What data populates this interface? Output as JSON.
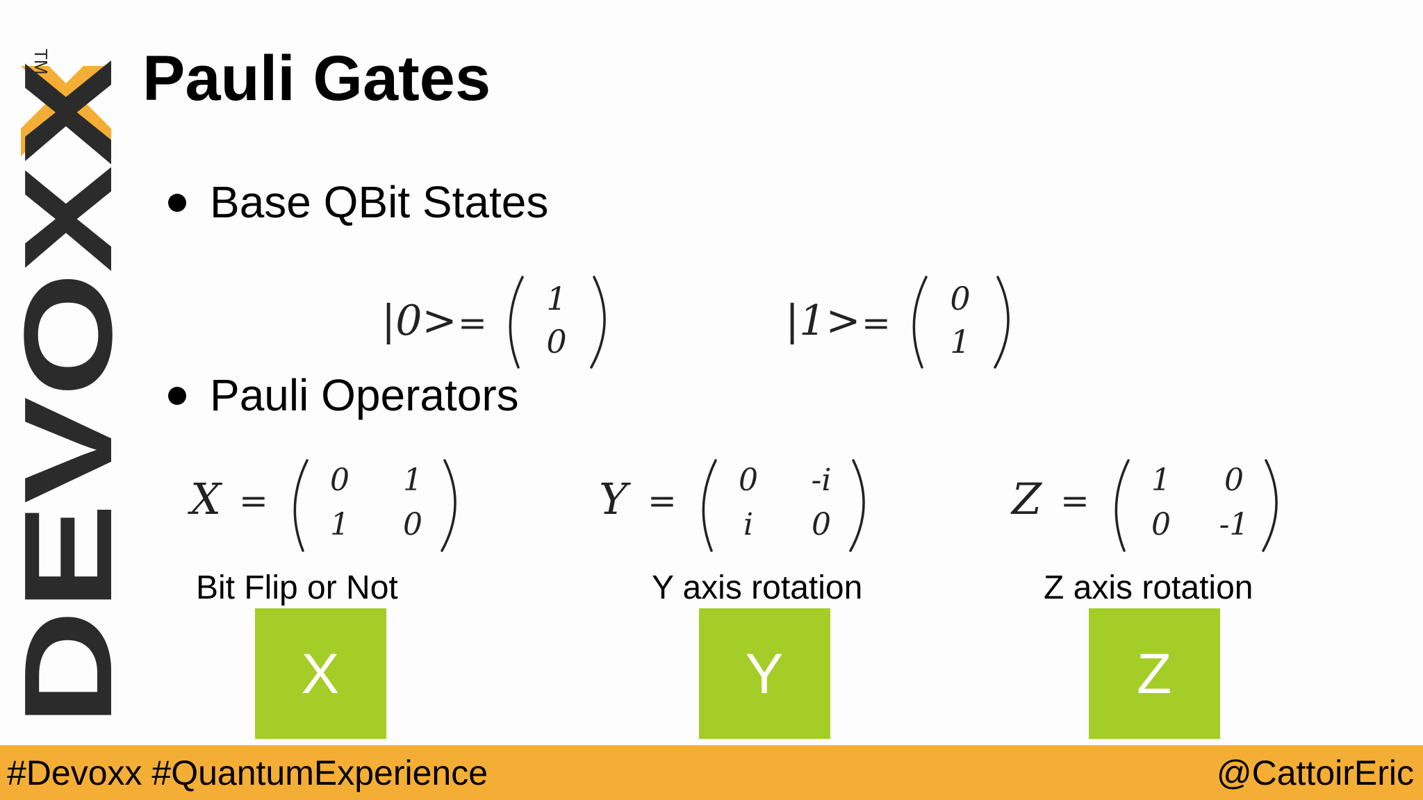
{
  "header": {
    "title": "Pauli Gates"
  },
  "logo": {
    "text": "DEVOXX",
    "mark": "TM"
  },
  "bullets": [
    "Base QBit States",
    "Pauli Operators"
  ],
  "states": [
    {
      "label": "|0>",
      "vector": [
        "1",
        "0"
      ]
    },
    {
      "label": "|1>",
      "vector": [
        "0",
        "1"
      ]
    }
  ],
  "operators": [
    {
      "symbol": "X",
      "matrix": [
        [
          "0",
          "1"
        ],
        [
          "1",
          "0"
        ]
      ],
      "caption": "Bit Flip or Not",
      "gate": "X"
    },
    {
      "symbol": "Y",
      "matrix": [
        [
          "0",
          "-i"
        ],
        [
          "i",
          "0"
        ]
      ],
      "caption": "Y axis rotation",
      "gate": "Y"
    },
    {
      "symbol": "Z",
      "matrix": [
        [
          "1",
          "0"
        ],
        [
          "0",
          "-1"
        ]
      ],
      "caption": "Z axis rotation",
      "gate": "Z"
    }
  ],
  "footer": {
    "left": "#Devoxx #QuantumExperience",
    "right": "@CattoirEric"
  }
}
